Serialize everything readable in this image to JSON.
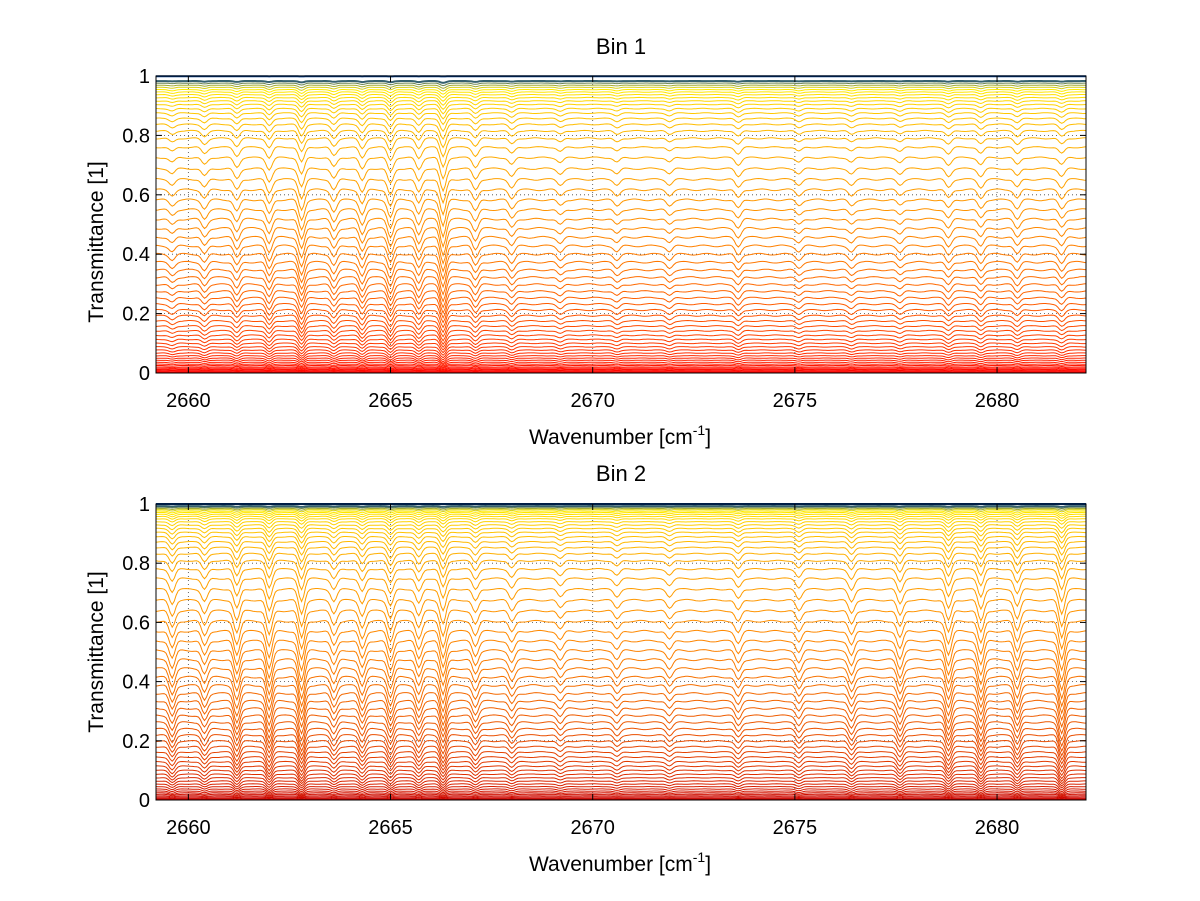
{
  "chart_data": [
    {
      "type": "line",
      "title": "Bin 1",
      "xlabel": "Wavenumber [cm",
      "xlabel_sup": "-1",
      "xlabel_end": "]",
      "ylabel": "Transmittance [1]",
      "xlim": [
        2659.2,
        2682.2
      ],
      "ylim": [
        0,
        1
      ],
      "xticks": [
        2660,
        2665,
        2670,
        2675,
        2680
      ],
      "xtick_labels": [
        "2660",
        "2665",
        "2670",
        "2675",
        "2680"
      ],
      "yticks": [
        0,
        0.2,
        0.4,
        0.6,
        0.8,
        1
      ],
      "ytick_labels": [
        "0",
        "0.2",
        "0.4",
        "0.6",
        "0.8",
        "1"
      ],
      "grid": "dotted",
      "colormap": "autumn-to-jet (red low, yellow high, blue top)",
      "series_count": 60,
      "series_baselines": [
        0.0,
        0.003,
        0.006,
        0.009,
        0.012,
        0.016,
        0.02,
        0.025,
        0.03,
        0.036,
        0.043,
        0.05,
        0.058,
        0.067,
        0.077,
        0.088,
        0.1,
        0.113,
        0.127,
        0.142,
        0.158,
        0.175,
        0.193,
        0.212,
        0.232,
        0.253,
        0.275,
        0.298,
        0.322,
        0.347,
        0.373,
        0.4,
        0.428,
        0.457,
        0.487,
        0.518,
        0.55,
        0.583,
        0.617,
        0.652,
        0.688,
        0.725,
        0.76,
        0.79,
        0.815,
        0.837,
        0.857,
        0.875,
        0.89,
        0.904,
        0.916,
        0.927,
        0.937,
        0.946,
        0.954,
        0.962,
        0.969,
        0.976,
        0.983,
        0.999
      ],
      "absorption_lines": [
        2659.6,
        2660.4,
        2661.2,
        2662.0,
        2662.8,
        2663.6,
        2664.3,
        2665.0,
        2665.7,
        2666.3,
        2667.1,
        2668.0,
        2669.2,
        2670.6,
        2671.9,
        2673.6,
        2675.1,
        2676.4,
        2677.6,
        2678.8,
        2679.6,
        2680.5,
        2681.6
      ],
      "absorption_depths": [
        0.02,
        0.03,
        0.04,
        0.05,
        0.07,
        0.04,
        0.05,
        0.06,
        0.05,
        0.09,
        0.04,
        0.03,
        0.02,
        0.02,
        0.02,
        0.03,
        0.02,
        0.02,
        0.02,
        0.03,
        0.03,
        0.03,
        0.03
      ]
    },
    {
      "type": "line",
      "title": "Bin 2",
      "xlabel": "Wavenumber [cm",
      "xlabel_sup": "-1",
      "xlabel_end": "]",
      "ylabel": "Transmittance [1]",
      "xlim": [
        2659.2,
        2682.2
      ],
      "ylim": [
        0,
        1
      ],
      "xticks": [
        2660,
        2665,
        2670,
        2675,
        2680
      ],
      "xtick_labels": [
        "2660",
        "2665",
        "2670",
        "2675",
        "2680"
      ],
      "yticks": [
        0,
        0.2,
        0.4,
        0.6,
        0.8,
        1
      ],
      "ytick_labels": [
        "0",
        "0.2",
        "0.4",
        "0.6",
        "0.8",
        "1"
      ],
      "grid": "dotted",
      "colormap": "autumn-to-jet (dark red low, yellow high, blue top)",
      "series_count": 60,
      "series_baselines": [
        0.0,
        0.003,
        0.006,
        0.01,
        0.014,
        0.019,
        0.024,
        0.03,
        0.037,
        0.045,
        0.054,
        0.064,
        0.075,
        0.087,
        0.1,
        0.114,
        0.129,
        0.145,
        0.162,
        0.18,
        0.199,
        0.219,
        0.24,
        0.262,
        0.285,
        0.309,
        0.334,
        0.36,
        0.387,
        0.415,
        0.444,
        0.474,
        0.505,
        0.537,
        0.57,
        0.604,
        0.639,
        0.675,
        0.712,
        0.748,
        0.78,
        0.808,
        0.832,
        0.853,
        0.872,
        0.889,
        0.904,
        0.917,
        0.929,
        0.94,
        0.95,
        0.958,
        0.965,
        0.971,
        0.976,
        0.981,
        0.985,
        0.989,
        0.993,
        1.0
      ],
      "absorption_lines": [
        2659.6,
        2660.4,
        2661.2,
        2662.0,
        2662.8,
        2663.6,
        2664.3,
        2665.0,
        2665.7,
        2666.3,
        2667.1,
        2668.0,
        2669.2,
        2670.6,
        2671.9,
        2673.6,
        2675.1,
        2676.4,
        2677.6,
        2678.8,
        2679.6,
        2680.5,
        2681.6
      ],
      "absorption_depths": [
        0.06,
        0.05,
        0.08,
        0.09,
        0.1,
        0.05,
        0.06,
        0.07,
        0.06,
        0.09,
        0.05,
        0.04,
        0.03,
        0.03,
        0.03,
        0.04,
        0.04,
        0.05,
        0.06,
        0.08,
        0.08,
        0.07,
        0.1
      ]
    }
  ]
}
